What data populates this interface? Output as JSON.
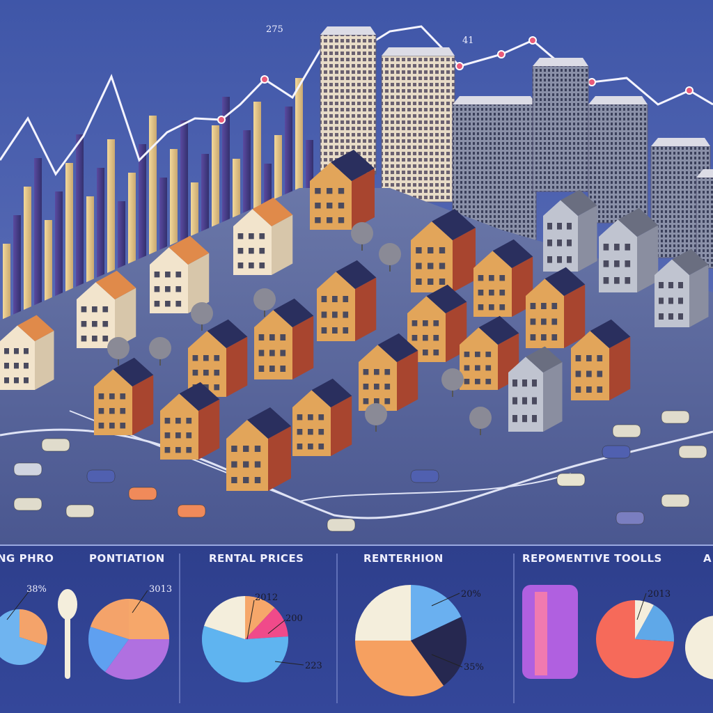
{
  "top_labels": [
    "275",
    "41"
  ],
  "panels": [
    {
      "title": "NG PHRO",
      "labels": [
        "38%"
      ]
    },
    {
      "title": "PONTIATION",
      "labels": [
        "3013"
      ]
    },
    {
      "title": "RENTAL PRICES",
      "labels": [
        "2012",
        "200",
        "223"
      ]
    },
    {
      "title": "RENTERHION",
      "labels": [
        "20%",
        "35%"
      ]
    },
    {
      "title": "REPOMENTIVE TOOLLS",
      "labels": [
        "2013"
      ]
    },
    {
      "title": "A"
    }
  ]
}
